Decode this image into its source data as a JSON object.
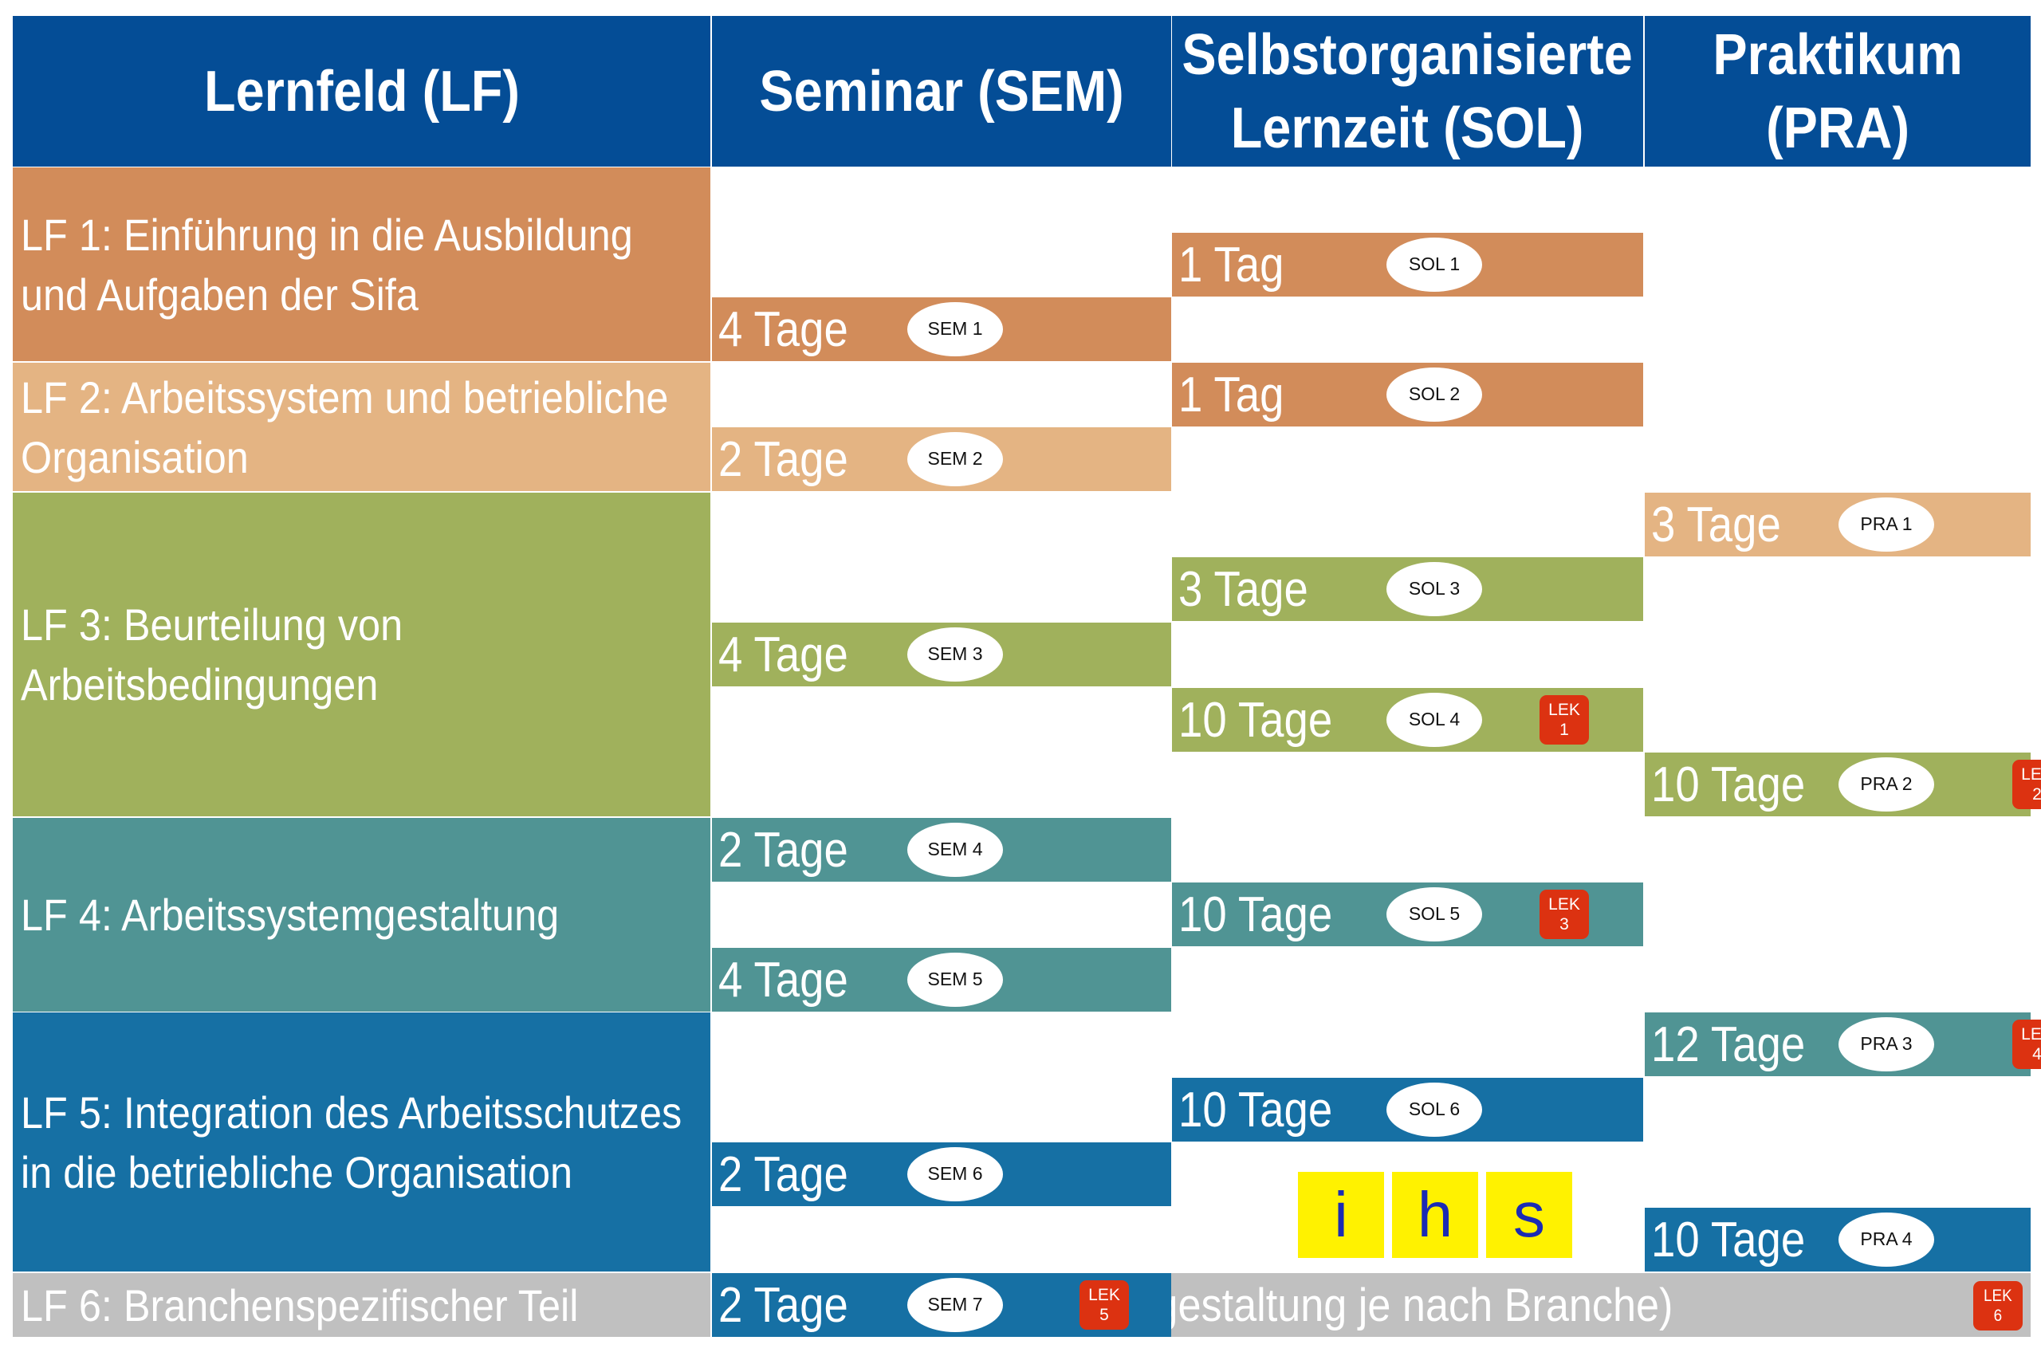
{
  "headers": [
    {
      "line1": "Lernfeld (LF)",
      "line2": ""
    },
    {
      "line1": "Seminar (SEM)",
      "line2": ""
    },
    {
      "line1": "Selbstorganisierte",
      "line2": "Lernzeit (SOL)"
    },
    {
      "line1": "Praktikum",
      "line2": "(PRA)"
    }
  ],
  "learning_fields": [
    {
      "line1": "LF 1: Einführung in die Ausbildung",
      "line2": "und Aufgaben der Sifa",
      "color": "#d28c5a"
    },
    {
      "line1": "LF 2: Arbeitssystem und betriebliche",
      "line2": "Organisation",
      "color": "#e4b483"
    },
    {
      "line1": "LF 3: Beurteilung von",
      "line2": "Arbeitsbedingungen",
      "color": "#a0b15c"
    },
    {
      "line1": "LF 4: Arbeitssystemgestaltung",
      "line2": "",
      "color": "#509494"
    },
    {
      "line1": "LF 5: Integration des Arbeitsschutzes",
      "line2": "in die betriebliche Organisation",
      "color": "#1670a4"
    },
    {
      "line1": "LF 6: Branchenspezifischer Teil",
      "line2": "",
      "color": "#c0c0c0"
    }
  ],
  "lf6_note": "(Ausgestaltung je nach Branche)",
  "lf6_lek": {
    "label": "LEK",
    "number": "6"
  },
  "blocks": [
    {
      "col": 2,
      "row": 1,
      "lf": 0,
      "duration": "1 Tag",
      "code": "SOL 1"
    },
    {
      "col": 1,
      "row": 2,
      "lf": 0,
      "duration": "4 Tage",
      "code": "SEM 1"
    },
    {
      "col": 2,
      "row": 3,
      "lf": 0,
      "duration": "1 Tag",
      "code": "SOL 2"
    },
    {
      "col": 1,
      "row": 4,
      "lf": 1,
      "duration": "2 Tage",
      "code": "SEM 2"
    },
    {
      "col": 3,
      "row": 5,
      "lf": 1,
      "duration": "3 Tage",
      "code": "PRA 1"
    },
    {
      "col": 2,
      "row": 6,
      "lf": 2,
      "duration": "3 Tage",
      "code": "SOL 3"
    },
    {
      "col": 1,
      "row": 7,
      "lf": 2,
      "duration": "4 Tage",
      "code": "SEM 3"
    },
    {
      "col": 2,
      "row": 8,
      "lf": 2,
      "duration": "10 Tage",
      "code": "SOL 4",
      "lek": "1"
    },
    {
      "col": 3,
      "row": 9,
      "lf": 2,
      "duration": "10 Tage",
      "code": "PRA 2",
      "lek": "2"
    },
    {
      "col": 1,
      "row": 10,
      "lf": 3,
      "duration": "2 Tage",
      "code": "SEM 4"
    },
    {
      "col": 2,
      "row": 11,
      "lf": 3,
      "duration": "10 Tage",
      "code": "SOL 5",
      "lek": "3"
    },
    {
      "col": 1,
      "row": 12,
      "lf": 3,
      "duration": "4 Tage",
      "code": "SEM 5"
    },
    {
      "col": 3,
      "row": 13,
      "lf": 3,
      "duration": "12 Tage",
      "code": "PRA 3",
      "lek": "4"
    },
    {
      "col": 2,
      "row": 14,
      "lf": 4,
      "duration": "10 Tage",
      "code": "SOL 6"
    },
    {
      "col": 1,
      "row": 15,
      "lf": 4,
      "duration": "2 Tage",
      "code": "SEM 6"
    },
    {
      "col": 3,
      "row": 16,
      "lf": 4,
      "duration": "10 Tage",
      "code": "PRA 4"
    },
    {
      "col": 1,
      "row": 17,
      "lf": 4,
      "duration": "2 Tage",
      "code": "SEM 7",
      "lek": "5"
    }
  ],
  "lek_label": "LEK",
  "logo": [
    "i",
    "h",
    "s"
  ],
  "colors": {
    "header": "#044d96",
    "lek": "#dc3211",
    "logo_bg": "#fff200",
    "logo_text": "#1b2bb4"
  }
}
